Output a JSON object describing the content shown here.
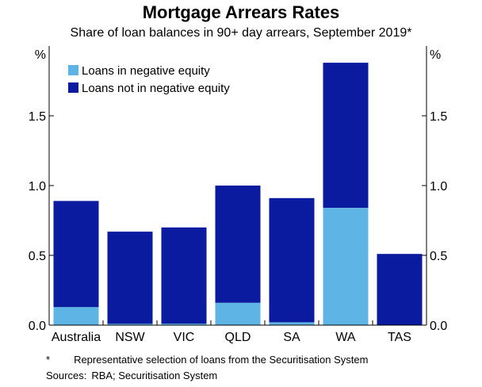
{
  "title": "Mortgage Arrears Rates",
  "subtitle": "Share of loan balances in 90+ day arrears, September 2019*",
  "footnote": {
    "marker": "*",
    "text": "Representative selection of loans from the Securitisation System"
  },
  "sources": {
    "label": "Sources:",
    "text": "RBA; Securitisation System"
  },
  "colors": {
    "negative_equity": "#5db4e5",
    "not_negative_equity": "#0a1ba0",
    "axis": "#000000"
  },
  "chart_data": {
    "type": "bar",
    "stacked": true,
    "categories": [
      "Australia",
      "NSW",
      "VIC",
      "QLD",
      "SA",
      "WA",
      "TAS"
    ],
    "series": [
      {
        "name": "Loans in negative equity",
        "values": [
          0.13,
          0.01,
          0.01,
          0.16,
          0.02,
          0.84,
          0.0
        ]
      },
      {
        "name": "Loans not in negative equity",
        "values": [
          0.76,
          0.66,
          0.69,
          0.84,
          0.89,
          1.04,
          0.51
        ]
      }
    ],
    "ylim": [
      0,
      1.9
    ],
    "yticks": [
      0.0,
      0.5,
      1.0,
      1.5
    ],
    "ytick_labels": [
      "0.0",
      "0.5",
      "1.0",
      "1.5"
    ],
    "yunit_left": "%",
    "yunit_right": "%",
    "legend_position": "top-left",
    "grid": false
  }
}
